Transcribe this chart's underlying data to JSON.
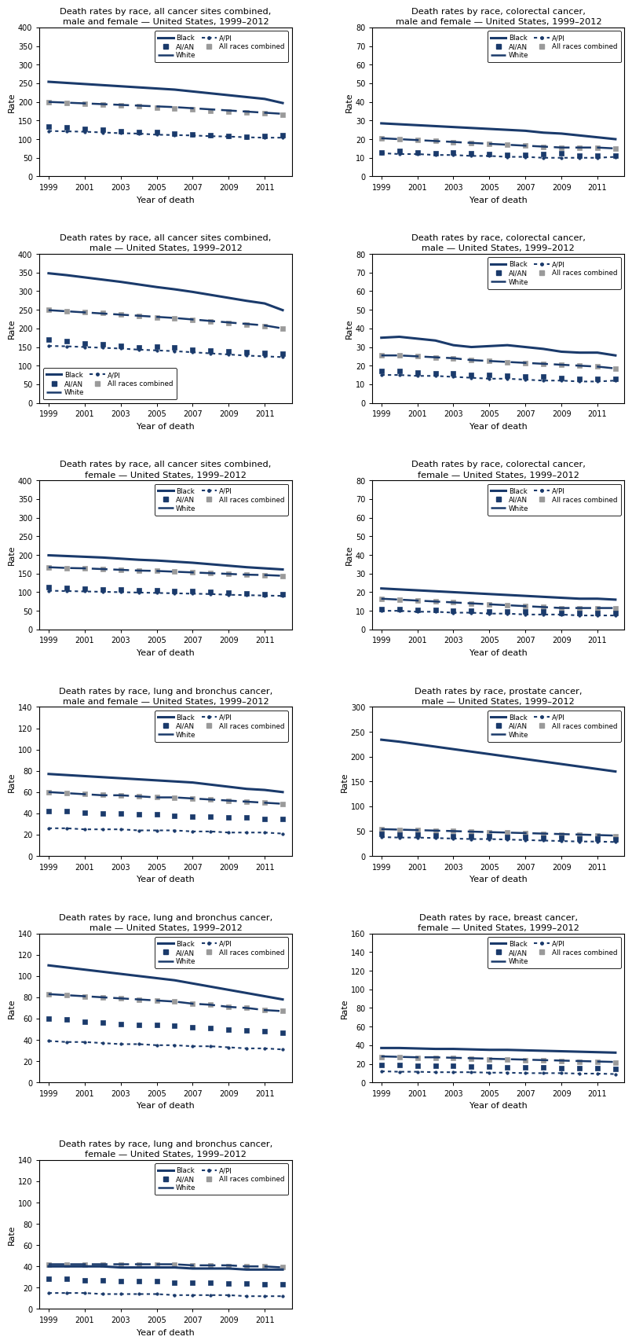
{
  "years": [
    1999,
    2000,
    2001,
    2002,
    2003,
    2004,
    2005,
    2006,
    2007,
    2008,
    2009,
    2010,
    2011,
    2012
  ],
  "DARK_BLUE": "#1a3a6b",
  "GRAY": "#9a9a9a",
  "charts": [
    {
      "title": "Death rates by race, all cancer sites combined,\nmale and female — United States, 1999–2012",
      "ylim": [
        0,
        400
      ],
      "yticks": [
        0,
        50,
        100,
        150,
        200,
        250,
        300,
        350,
        400
      ],
      "legend_loc": "upper right",
      "data": {
        "Black": [
          254,
          251,
          248,
          245,
          242,
          239,
          236,
          233,
          228,
          223,
          218,
          213,
          208,
          197
        ],
        "White": [
          200,
          198,
          196,
          194,
          192,
          190,
          188,
          186,
          183,
          180,
          177,
          174,
          171,
          168
        ],
        "AI/AN": [
          134,
          132,
          127,
          125,
          122,
          120,
          120,
          115,
          113,
          110,
          109,
          107,
          108,
          110
        ],
        "A/PI": [
          122,
          121,
          120,
          118,
          116,
          115,
          112,
          111,
          110,
          108,
          107,
          105,
          104,
          104
        ],
        "All races combined": [
          200,
          198,
          196,
          193,
          190,
          188,
          185,
          183,
          180,
          177,
          174,
          171,
          169,
          166
        ]
      }
    },
    {
      "title": "Death rates by race, colorectal cancer,\nmale and female — United States, 1999–2012",
      "ylim": [
        0,
        80
      ],
      "yticks": [
        0,
        10,
        20,
        30,
        40,
        50,
        60,
        70,
        80
      ],
      "legend_loc": "upper right",
      "data": {
        "Black": [
          28.5,
          28,
          27.5,
          27,
          26.5,
          26,
          25.5,
          25,
          24.5,
          23.5,
          23,
          22,
          21,
          20
        ],
        "White": [
          20.5,
          20,
          19.5,
          19,
          18.5,
          18,
          17.5,
          17,
          16.5,
          16,
          15.5,
          15.5,
          15.5,
          15
        ],
        "AI/AN": [
          13,
          13.5,
          13,
          12.5,
          13,
          12.5,
          12,
          11.5,
          11.5,
          12,
          12.5,
          11,
          11,
          11
        ],
        "A/PI": [
          12.5,
          12,
          12,
          11.5,
          11.5,
          11,
          11,
          10.5,
          10.5,
          10,
          10,
          10,
          10,
          10.5
        ],
        "All races combined": [
          20.5,
          20,
          19.5,
          19,
          18.5,
          18,
          17.5,
          17,
          16.5,
          16,
          15.5,
          15.5,
          15.5,
          15
        ]
      }
    },
    {
      "title": "Death rates by race, all cancer sites combined,\nmale — United States, 1999–2012",
      "ylim": [
        0,
        400
      ],
      "yticks": [
        0,
        50,
        100,
        150,
        200,
        250,
        300,
        350,
        400
      ],
      "legend_loc": "lower left",
      "data": {
        "Black": [
          348,
          343,
          337,
          331,
          325,
          318,
          311,
          305,
          298,
          290,
          282,
          274,
          267,
          249
        ],
        "White": [
          249,
          246,
          243,
          240,
          237,
          234,
          231,
          228,
          224,
          220,
          216,
          212,
          208,
          200
        ],
        "AI/AN": [
          170,
          165,
          160,
          158,
          154,
          150,
          152,
          148,
          142,
          140,
          138,
          136,
          134,
          133
        ],
        "A/PI": [
          153,
          152,
          150,
          148,
          146,
          143,
          141,
          139,
          136,
          133,
          130,
          127,
          125,
          123
        ],
        "All races combined": [
          250,
          247,
          244,
          241,
          237,
          234,
          230,
          227,
          223,
          219,
          215,
          210,
          206,
          200
        ]
      }
    },
    {
      "title": "Death rates by race, colorectal cancer,\nmale — United States, 1999–2012",
      "ylim": [
        0,
        80
      ],
      "yticks": [
        0,
        10,
        20,
        30,
        40,
        50,
        60,
        70,
        80
      ],
      "legend_loc": "upper right",
      "data": {
        "Black": [
          35,
          35.5,
          34.5,
          33.5,
          31,
          30,
          30.5,
          31,
          30,
          29,
          27.5,
          27,
          27,
          25.5
        ],
        "White": [
          25.5,
          25.5,
          25,
          24.5,
          24,
          23,
          22.5,
          22,
          21.5,
          21,
          20.5,
          20,
          19.5,
          18.5
        ],
        "AI/AN": [
          17,
          17,
          16.5,
          16,
          16,
          15,
          15,
          14.5,
          14,
          14,
          13.5,
          13,
          13,
          13
        ],
        "A/PI": [
          15,
          15,
          14.5,
          14.5,
          14,
          13.5,
          13,
          13,
          12.5,
          12,
          12,
          11.5,
          11.5,
          12
        ],
        "All races combined": [
          25.5,
          25.5,
          25,
          24.5,
          24,
          23,
          22.5,
          22,
          21.5,
          21,
          20.5,
          20,
          19.5,
          18.5
        ]
      }
    },
    {
      "title": "Death rates by race, all cancer sites combined,\nfemale — United States, 1999–2012",
      "ylim": [
        0,
        400
      ],
      "yticks": [
        0,
        50,
        100,
        150,
        200,
        250,
        300,
        350,
        400
      ],
      "legend_loc": "upper right",
      "data": {
        "Black": [
          199,
          197,
          195,
          193,
          190,
          187,
          185,
          182,
          179,
          175,
          171,
          167,
          164,
          161
        ],
        "White": [
          167,
          165,
          164,
          162,
          160,
          158,
          157,
          155,
          153,
          151,
          149,
          147,
          146,
          144
        ],
        "AI/AN": [
          113,
          111,
          110,
          108,
          107,
          106,
          105,
          103,
          102,
          100,
          98,
          96,
          95,
          94
        ],
        "A/PI": [
          104,
          103,
          102,
          101,
          100,
          99,
          98,
          97,
          96,
          95,
          93,
          92,
          91,
          90
        ],
        "All races combined": [
          167,
          165,
          164,
          162,
          160,
          158,
          157,
          155,
          153,
          151,
          149,
          147,
          146,
          144
        ]
      }
    },
    {
      "title": "Death rates by race, colorectal cancer,\nfemale — United States, 1999–2012",
      "ylim": [
        0,
        80
      ],
      "yticks": [
        0,
        10,
        20,
        30,
        40,
        50,
        60,
        70,
        80
      ],
      "legend_loc": "upper right",
      "data": {
        "Black": [
          22,
          21.5,
          21,
          20.5,
          20,
          19.5,
          19,
          18.5,
          18,
          17.5,
          17,
          16.5,
          16.5,
          16
        ],
        "White": [
          16.5,
          16,
          15.5,
          15,
          14.5,
          14,
          13.5,
          13,
          12.5,
          12,
          11.5,
          11.5,
          11.5,
          11.5
        ],
        "AI/AN": [
          11,
          11,
          10.5,
          10.5,
          10,
          10,
          9.5,
          9.5,
          9.5,
          9.5,
          9,
          9,
          9,
          9
        ],
        "A/PI": [
          10,
          10,
          9.5,
          9.5,
          9,
          9,
          8.5,
          8.5,
          8,
          8,
          8,
          7.5,
          7.5,
          7.5
        ],
        "All races combined": [
          16.5,
          16,
          15.5,
          15,
          14.5,
          14,
          13.5,
          13,
          12.5,
          12,
          11.5,
          11.5,
          11.5,
          11.5
        ]
      }
    },
    {
      "title": "Death rates by race, lung and bronchus cancer,\nmale and female — United States, 1999–2012",
      "ylim": [
        0,
        140
      ],
      "yticks": [
        0,
        20,
        40,
        60,
        80,
        100,
        120,
        140
      ],
      "legend_loc": "upper right",
      "data": {
        "Black": [
          77,
          76,
          75,
          74,
          73,
          72,
          71,
          70,
          69,
          67,
          65,
          63,
          62,
          60
        ],
        "White": [
          60,
          59,
          58,
          57,
          57,
          56,
          55,
          55,
          54,
          53,
          52,
          51,
          50,
          49
        ],
        "AI/AN": [
          42,
          42,
          41,
          40,
          40,
          39,
          39,
          38,
          37,
          37,
          36,
          36,
          35,
          35
        ],
        "A/PI": [
          26,
          26,
          25,
          25,
          25,
          24,
          24,
          24,
          23,
          23,
          22,
          22,
          22,
          21
        ],
        "All races combined": [
          60,
          59,
          58.5,
          57.5,
          57,
          56,
          55.5,
          55,
          54,
          53,
          52,
          51,
          50,
          49
        ]
      }
    },
    {
      "title": "Death rates by race, prostate cancer,\nmale — United States, 1999–2012",
      "ylim": [
        0,
        300
      ],
      "yticks": [
        0,
        50,
        100,
        150,
        200,
        250,
        300
      ],
      "legend_loc": "upper right",
      "data": {
        "Black": [
          234,
          230,
          225,
          220,
          215,
          210,
          205,
          200,
          195,
          190,
          185,
          180,
          175,
          170
        ],
        "White": [
          54,
          53,
          52,
          51,
          50,
          49,
          48,
          47,
          46,
          45,
          44,
          43,
          42,
          41
        ],
        "AI/AN": [
          44,
          43,
          42,
          41,
          40,
          40,
          39,
          38,
          38,
          37,
          36,
          35,
          35,
          34
        ],
        "A/PI": [
          38,
          37,
          37,
          36,
          35,
          34,
          34,
          33,
          32,
          31,
          30,
          29,
          29,
          28
        ],
        "All races combined": [
          54,
          53,
          52,
          51,
          50,
          49,
          48,
          47,
          46,
          44,
          43,
          42,
          41,
          40
        ]
      }
    },
    {
      "title": "Death rates by race, lung and bronchus cancer,\nmale — United States, 1999–2012",
      "ylim": [
        0,
        140
      ],
      "yticks": [
        0,
        20,
        40,
        60,
        80,
        100,
        120,
        140
      ],
      "legend_loc": "upper right",
      "data": {
        "Black": [
          110,
          108,
          106,
          104,
          102,
          100,
          98,
          96,
          93,
          90,
          87,
          84,
          81,
          78
        ],
        "White": [
          83,
          82,
          81,
          80,
          79,
          78,
          77,
          76,
          74,
          73,
          71,
          70,
          68,
          67
        ],
        "AI/AN": [
          60,
          59,
          57,
          56,
          55,
          54,
          54,
          53,
          52,
          51,
          50,
          49,
          48,
          47
        ],
        "A/PI": [
          39,
          38,
          38,
          37,
          36,
          36,
          35,
          35,
          34,
          34,
          33,
          32,
          32,
          31
        ],
        "All races combined": [
          83,
          82,
          81,
          80,
          79,
          78,
          77,
          76,
          74,
          73,
          71,
          70,
          68,
          67
        ]
      }
    },
    {
      "title": "Death rates by race, breast cancer,\nfemale — United States, 1999–2012",
      "ylim": [
        0,
        160
      ],
      "yticks": [
        0,
        20,
        40,
        60,
        80,
        100,
        120,
        140,
        160
      ],
      "legend_loc": "upper right",
      "data": {
        "Black": [
          37,
          37,
          36.5,
          36,
          36,
          35.5,
          35,
          35,
          34.5,
          34,
          33.5,
          33,
          32.5,
          32
        ],
        "White": [
          28,
          27.5,
          27,
          27,
          26.5,
          26,
          25.5,
          25,
          24.5,
          24,
          23.5,
          23,
          22.5,
          22
        ],
        "AI/AN": [
          19,
          18.5,
          18,
          18,
          17.5,
          17,
          17,
          16.5,
          16,
          16,
          15.5,
          15,
          15,
          14.5
        ],
        "A/PI": [
          12,
          11.5,
          11.5,
          11,
          11,
          11,
          10.5,
          10.5,
          10,
          10,
          10,
          9.5,
          9.5,
          9
        ],
        "All races combined": [
          27.5,
          27,
          26.5,
          26.5,
          26,
          25.5,
          25,
          24.5,
          24,
          23.5,
          23,
          22.5,
          22,
          21.5
        ]
      }
    },
    {
      "title": "Death rates by race, lung and bronchus cancer,\nfemale — United States, 1999–2012",
      "ylim": [
        0,
        140
      ],
      "yticks": [
        0,
        20,
        40,
        60,
        80,
        100,
        120,
        140
      ],
      "legend_loc": "upper right",
      "data": {
        "Black": [
          40,
          40,
          40,
          40,
          39,
          39,
          39,
          39,
          38,
          38,
          38,
          37,
          37,
          37
        ],
        "White": [
          42,
          42,
          42,
          42,
          42,
          42,
          42,
          42,
          41,
          41,
          41,
          40,
          40,
          39
        ],
        "AI/AN": [
          28,
          28,
          27,
          27,
          26,
          26,
          26,
          25,
          25,
          25,
          24,
          24,
          23,
          23
        ],
        "A/PI": [
          15,
          15,
          15,
          14,
          14,
          14,
          14,
          13,
          13,
          13,
          13,
          12,
          12,
          12
        ],
        "All races combined": [
          42,
          42,
          42,
          42,
          42,
          42,
          41.5,
          41.5,
          41,
          41,
          40.5,
          40,
          40,
          39.5
        ]
      }
    }
  ]
}
